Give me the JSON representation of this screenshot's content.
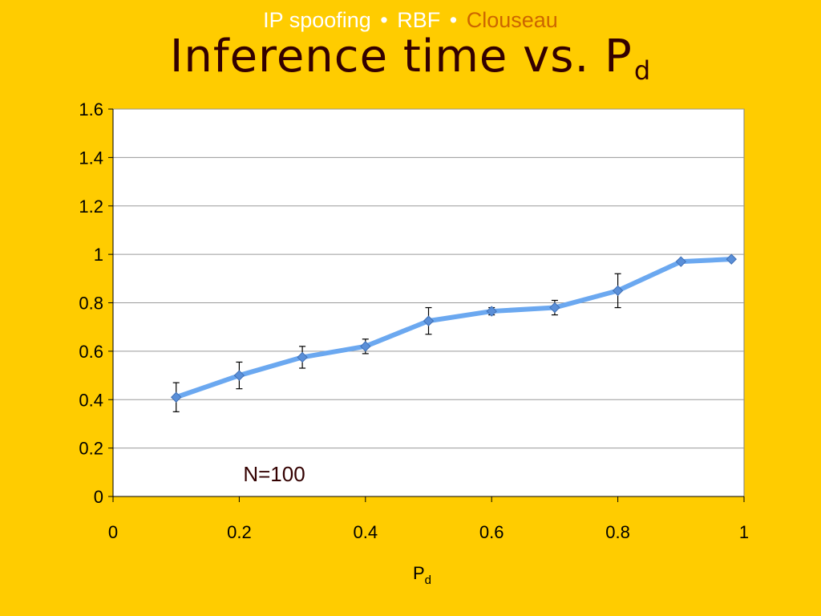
{
  "header": {
    "breadcrumb": [
      "IP spoofing",
      "RBF",
      "Clouseau"
    ],
    "separator": "•",
    "title": "Inference time vs. P",
    "title_sub": "d"
  },
  "colors": {
    "background": "#FFCC00",
    "plot_bg": "#FFFFFF",
    "series": "#6BA8F0",
    "marker": "#5A8FD8",
    "breadcrumb_current": "#CC6600",
    "title": "#330000"
  },
  "chart_data": {
    "type": "line",
    "title": "",
    "xlabel": "P",
    "xlabel_sub": "d",
    "ylabel": "",
    "xlim": [
      0,
      1
    ],
    "ylim": [
      0,
      1.6
    ],
    "xticks": [
      "0",
      "0.2",
      "0.4",
      "0.6",
      "0.8",
      "1"
    ],
    "xtick_values": [
      0,
      0.2,
      0.4,
      0.6,
      0.8,
      1
    ],
    "yticks": [
      "0",
      "0.2",
      "0.4",
      "0.6",
      "0.8",
      "1",
      "1.2",
      "1.4",
      "1.6"
    ],
    "ytick_values": [
      0,
      0.2,
      0.4,
      0.6,
      0.8,
      1,
      1.2,
      1.4,
      1.6
    ],
    "grid": "horizontal",
    "annotation": "N=100",
    "series": [
      {
        "x": [
          0.1,
          0.2,
          0.3,
          0.4,
          0.5,
          0.6,
          0.7,
          0.8,
          0.9,
          0.98
        ],
        "y": [
          0.41,
          0.5,
          0.575,
          0.62,
          0.725,
          0.765,
          0.78,
          0.85,
          0.97,
          0.98
        ],
        "err": [
          0.06,
          0.055,
          0.045,
          0.03,
          0.055,
          0.015,
          0.03,
          0.07,
          0,
          0
        ]
      }
    ]
  }
}
